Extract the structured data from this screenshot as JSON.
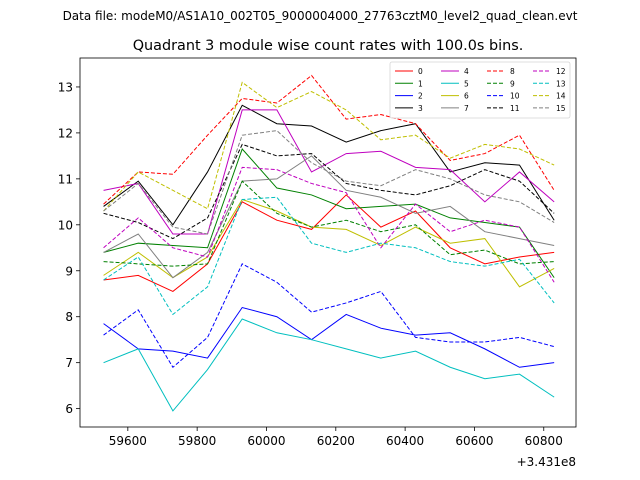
{
  "figure": {
    "suptitle": "Data file: modeM0/AS1A10_002T05_9000004000_27763cztM0_level2_quad_clean.evt",
    "offset_label": "+3.431e8"
  },
  "chart_data": {
    "type": "line",
    "title": "Quadrant 3 module wise count rates with 100.0s bins.",
    "xlabel": "",
    "ylabel": "",
    "x_offset": 343100000,
    "x": [
      59530,
      59630,
      59730,
      59830,
      59930,
      60030,
      60130,
      60230,
      60330,
      60430,
      60530,
      60630,
      60730,
      60830
    ],
    "xlim": [
      59462,
      60893
    ],
    "ylim": [
      5.6,
      13.63
    ],
    "xticks": [
      59600,
      59800,
      60000,
      60200,
      60400,
      60600,
      60800
    ],
    "yticks": [
      6,
      7,
      8,
      9,
      10,
      11,
      12,
      13
    ],
    "grid": false,
    "legend_position": "top-right",
    "legend_columns": 4,
    "series": [
      {
        "name": "0",
        "color": "#ff0000",
        "dash": "solid",
        "values": [
          8.8,
          8.9,
          8.55,
          9.15,
          10.5,
          10.1,
          9.9,
          10.65,
          9.95,
          10.3,
          9.5,
          9.15,
          9.3,
          9.4
        ]
      },
      {
        "name": "1",
        "color": "#008000",
        "dash": "solid",
        "values": [
          9.4,
          9.6,
          9.55,
          9.5,
          11.65,
          10.8,
          10.65,
          10.35,
          10.4,
          10.45,
          10.15,
          10.05,
          9.95,
          8.85
        ]
      },
      {
        "name": "2",
        "color": "#0000ff",
        "dash": "solid",
        "values": [
          7.85,
          7.3,
          7.25,
          7.1,
          8.2,
          8.0,
          7.5,
          8.05,
          7.75,
          7.6,
          7.65,
          7.3,
          6.9,
          7.0
        ]
      },
      {
        "name": "3",
        "color": "#000000",
        "dash": "solid",
        "values": [
          10.4,
          10.95,
          10.0,
          11.15,
          12.6,
          12.2,
          12.15,
          11.8,
          12.05,
          12.2,
          11.15,
          11.35,
          11.3,
          10.1
        ]
      },
      {
        "name": "4",
        "color": "#bf00bf",
        "dash": "solid",
        "values": [
          10.75,
          10.9,
          9.8,
          9.8,
          12.5,
          12.5,
          11.15,
          11.55,
          11.6,
          11.25,
          11.2,
          10.5,
          11.15,
          10.5
        ]
      },
      {
        "name": "5",
        "color": "#00bfbf",
        "dash": "solid",
        "values": [
          7.0,
          7.3,
          5.95,
          6.85,
          7.95,
          7.65,
          7.5,
          7.3,
          7.1,
          7.25,
          6.9,
          6.65,
          6.75,
          6.25
        ]
      },
      {
        "name": "6",
        "color": "#bfbf00",
        "dash": "solid",
        "values": [
          8.9,
          9.4,
          8.85,
          9.3,
          10.55,
          10.3,
          9.95,
          9.9,
          9.55,
          9.95,
          9.6,
          9.7,
          8.65,
          9.05
        ]
      },
      {
        "name": "7",
        "color": "#808080",
        "dash": "solid",
        "values": [
          9.4,
          9.8,
          8.85,
          9.4,
          10.95,
          11.0,
          11.5,
          10.75,
          10.6,
          10.25,
          10.4,
          9.85,
          9.7,
          9.55
        ]
      },
      {
        "name": "8",
        "color": "#ff0000",
        "dash": "dashed",
        "values": [
          10.45,
          11.15,
          11.1,
          11.95,
          12.75,
          12.65,
          13.25,
          12.3,
          12.4,
          12.2,
          11.4,
          11.55,
          11.95,
          10.75
        ]
      },
      {
        "name": "9",
        "color": "#008000",
        "dash": "dashed",
        "values": [
          9.2,
          9.15,
          9.1,
          9.15,
          10.95,
          10.25,
          9.95,
          10.1,
          9.85,
          10.0,
          9.35,
          9.45,
          9.15,
          9.2
        ]
      },
      {
        "name": "10",
        "color": "#0000ff",
        "dash": "dashed",
        "values": [
          7.6,
          8.15,
          6.9,
          7.55,
          9.15,
          8.75,
          8.1,
          8.3,
          8.55,
          7.55,
          7.45,
          7.45,
          7.55,
          7.35
        ]
      },
      {
        "name": "11",
        "color": "#000000",
        "dash": "dashed",
        "values": [
          10.25,
          10.05,
          9.7,
          10.15,
          11.75,
          11.5,
          11.55,
          10.9,
          10.75,
          10.65,
          10.85,
          11.2,
          10.95,
          10.25
        ]
      },
      {
        "name": "12",
        "color": "#bf00bf",
        "dash": "dashed",
        "values": [
          9.5,
          10.15,
          9.5,
          9.3,
          11.25,
          11.2,
          10.9,
          10.7,
          9.5,
          10.45,
          9.85,
          10.1,
          9.95,
          8.75
        ]
      },
      {
        "name": "13",
        "color": "#00bfbf",
        "dash": "dashed",
        "values": [
          8.8,
          9.3,
          8.05,
          8.65,
          10.55,
          10.6,
          9.6,
          9.4,
          9.6,
          9.5,
          9.2,
          9.1,
          9.25,
          8.3
        ]
      },
      {
        "name": "14",
        "color": "#bfbf00",
        "dash": "dashed",
        "values": [
          10.3,
          11.15,
          10.75,
          10.35,
          13.1,
          12.55,
          12.9,
          12.5,
          11.85,
          11.95,
          11.45,
          11.75,
          11.65,
          11.3
        ]
      },
      {
        "name": "15",
        "color": "#808080",
        "dash": "dashed",
        "values": [
          10.3,
          10.9,
          9.95,
          9.8,
          11.95,
          12.05,
          11.35,
          10.95,
          10.85,
          11.2,
          11.0,
          10.65,
          10.5,
          10.05
        ]
      }
    ]
  }
}
